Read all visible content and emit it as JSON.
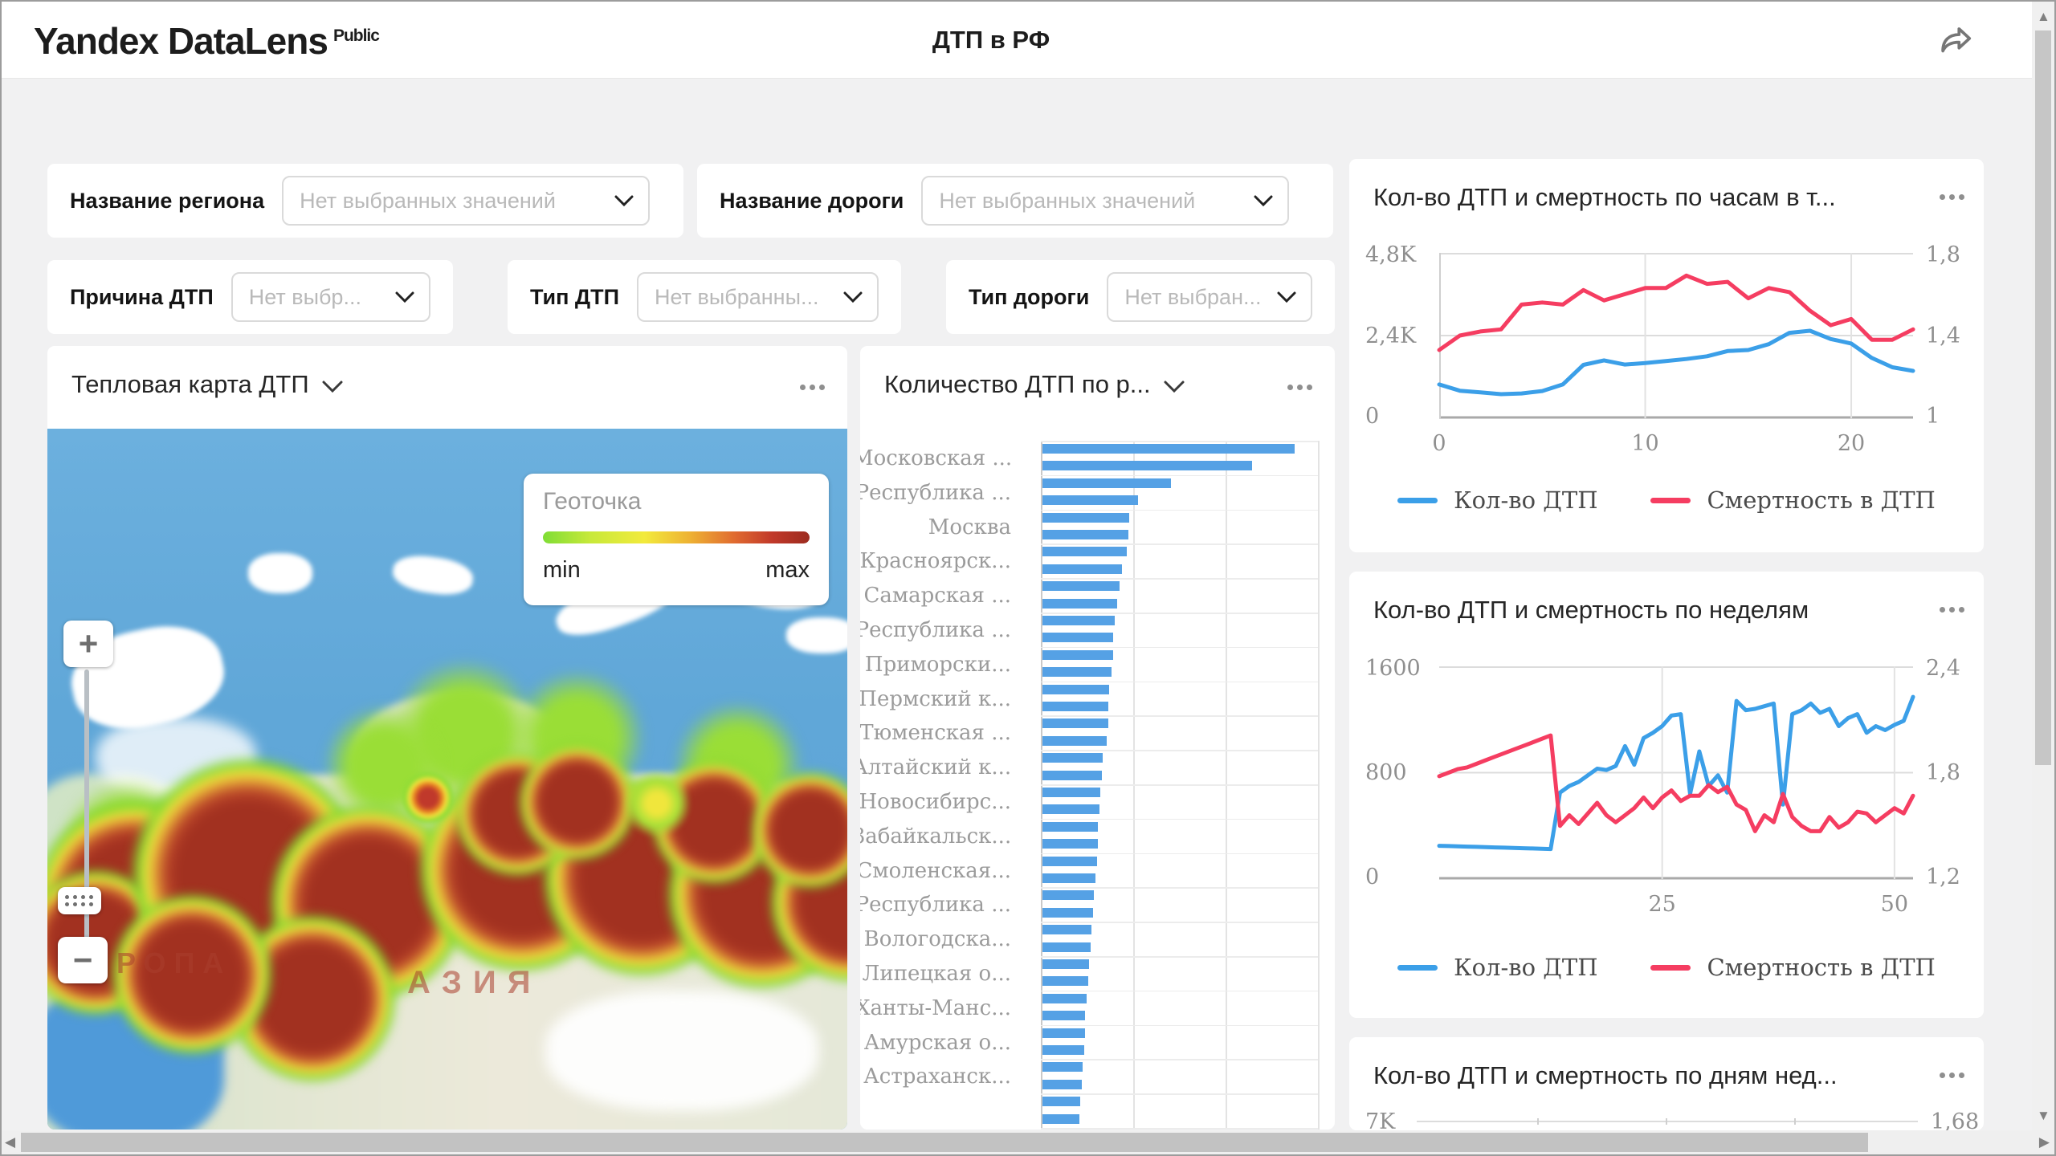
{
  "header": {
    "logo": "Yandex DataLens",
    "logo_badge": "Public",
    "title": "ДТП в РФ"
  },
  "filters": [
    {
      "id": "region",
      "label": "Название региона",
      "placeholder": "Нет выбранных значений"
    },
    {
      "id": "road",
      "label": "Название дороги",
      "placeholder": "Нет выбранных значений"
    },
    {
      "id": "cause",
      "label": "Причина ДТП",
      "placeholder": "Нет выбр..."
    },
    {
      "id": "accident_type",
      "label": "Тип ДТП",
      "placeholder": "Нет выбранны..."
    },
    {
      "id": "road_type",
      "label": "Тип дороги",
      "placeholder": "Нет выбран..."
    }
  ],
  "heatmap": {
    "title": "Тепловая карта ДТП",
    "legend_title": "Геоточка",
    "legend_min": "min",
    "legend_max": "max",
    "label_europe": "ЕВРОПА",
    "label_asia": "АЗИЯ",
    "zoom_in": "+",
    "zoom_out": "−"
  },
  "colors": {
    "accent_blue": "#3b9fe8",
    "accent_red": "#f53d61",
    "bar_blue": "#55a1e5"
  },
  "chart_data": [
    {
      "id": "accidents_by_region",
      "type": "bar",
      "orientation": "horizontal",
      "title": "Количество ДТП по р...",
      "categories": [
        "Московская ...",
        "Республика ...",
        "Москва",
        "Красноярск...",
        "Самарская ...",
        "Республика ...",
        "Приморски...",
        "Пермский к...",
        "Тюменская ...",
        "Алтайский к...",
        "Новосибирс...",
        "Забайкальск...",
        "Смоленская...",
        "Республика ...",
        "Вологодска...",
        "Липецкая о...",
        "Ханты-Манс...",
        "Амурская о...",
        "Астраханск..."
      ],
      "note": "x-axis values cut off at bottom of view; bar lengths given as percent of the longest bar; one label per two bars as rendered",
      "values_pct_of_max": [
        100,
        83,
        51,
        38,
        34.5,
        34,
        33.5,
        31.5,
        30.5,
        29.5,
        28.5,
        28,
        28,
        27.5,
        26.5,
        26,
        26,
        25.5,
        24,
        23.5,
        23,
        22.5,
        22,
        22,
        21.5,
        21,
        20.5,
        20,
        19.5,
        19,
        18.5,
        18,
        17.5,
        17,
        17,
        16.5,
        16,
        15.5,
        15,
        14.5
      ],
      "bar_color": "#55a1e5"
    },
    {
      "id": "accidents_mortality_by_hour",
      "type": "line",
      "title": "Кол-во ДТП и смертность по часам в т...",
      "x_min": 0,
      "x_max": 23,
      "x_ticks": [
        {
          "label": "0",
          "value": 0
        },
        {
          "label": "10",
          "value": 10
        },
        {
          "label": "20",
          "value": 20
        }
      ],
      "left_axis": {
        "ticks": [
          "4,8K",
          "2,4K",
          "0"
        ],
        "min": 0,
        "max": 4800
      },
      "right_axis": {
        "ticks": [
          "1,8",
          "1,4",
          "1"
        ],
        "min": 1,
        "max": 1.8
      },
      "series": [
        {
          "name": "Кол-во ДТП",
          "axis": "left",
          "color": "#3b9fe8",
          "values": [
            980,
            800,
            750,
            700,
            720,
            790,
            980,
            1550,
            1680,
            1560,
            1600,
            1660,
            1720,
            1800,
            1950,
            1980,
            2150,
            2480,
            2540,
            2300,
            2170,
            1750,
            1480,
            1375
          ]
        },
        {
          "name": "Смертность в ДТП",
          "axis": "right",
          "color": "#f53d61",
          "values": [
            1.33,
            1.4,
            1.42,
            1.43,
            1.55,
            1.56,
            1.55,
            1.62,
            1.57,
            1.6,
            1.63,
            1.63,
            1.69,
            1.65,
            1.66,
            1.58,
            1.63,
            1.61,
            1.52,
            1.45,
            1.48,
            1.38,
            1.38,
            1.43
          ]
        }
      ],
      "legend_position": "bottom"
    },
    {
      "id": "accidents_mortality_by_week",
      "type": "line",
      "title": "Кол-во ДТП и смертность по неделям",
      "x_min": 1,
      "x_max": 52,
      "x_ticks": [
        {
          "label": "25",
          "value": 25
        },
        {
          "label": "50",
          "value": 50
        }
      ],
      "left_axis": {
        "ticks": [
          "1600",
          "800",
          "0"
        ],
        "min": 0,
        "max": 1600
      },
      "right_axis": {
        "ticks": [
          "2,4",
          "1,8",
          "1,2"
        ],
        "min": 1.2,
        "max": 2.4
      },
      "series": [
        {
          "name": "Кол-во ДТП",
          "axis": "left",
          "color": "#3b9fe8",
          "values": [
            250,
            248,
            246,
            244,
            242,
            240,
            238,
            236,
            234,
            232,
            230,
            228,
            226,
            650,
            700,
            730,
            780,
            830,
            820,
            850,
            1000,
            860,
            1060,
            1100,
            1150,
            1230,
            1240,
            640,
            960,
            700,
            780,
            650,
            1340,
            1270,
            1280,
            1300,
            1320,
            560,
            1240,
            1270,
            1320,
            1250,
            1280,
            1150,
            1210,
            1240,
            1100,
            1150,
            1120,
            1160,
            1190,
            1370
          ]
        },
        {
          "name": "Смертность в ДТП",
          "axis": "right",
          "color": "#f53d61",
          "values": [
            1.78,
            1.8,
            1.82,
            1.83,
            1.85,
            1.87,
            1.89,
            1.91,
            1.93,
            1.95,
            1.97,
            1.99,
            2.01,
            1.5,
            1.56,
            1.51,
            1.57,
            1.63,
            1.56,
            1.52,
            1.56,
            1.6,
            1.66,
            1.6,
            1.66,
            1.7,
            1.64,
            1.67,
            1.67,
            1.73,
            1.69,
            1.72,
            1.62,
            1.59,
            1.47,
            1.56,
            1.52,
            1.68,
            1.55,
            1.5,
            1.47,
            1.47,
            1.55,
            1.49,
            1.52,
            1.58,
            1.57,
            1.52,
            1.56,
            1.6,
            1.57,
            1.67
          ]
        }
      ],
      "legend_position": "bottom"
    },
    {
      "id": "accidents_mortality_by_weekday",
      "type": "line",
      "title": "Кол-во ДТП и смертность по дням нед...",
      "note": "panel mostly cut off below viewport",
      "left_axis": {
        "ticks": [
          "7K"
        ]
      },
      "right_axis": {
        "ticks": [
          "1,68"
        ]
      }
    }
  ]
}
